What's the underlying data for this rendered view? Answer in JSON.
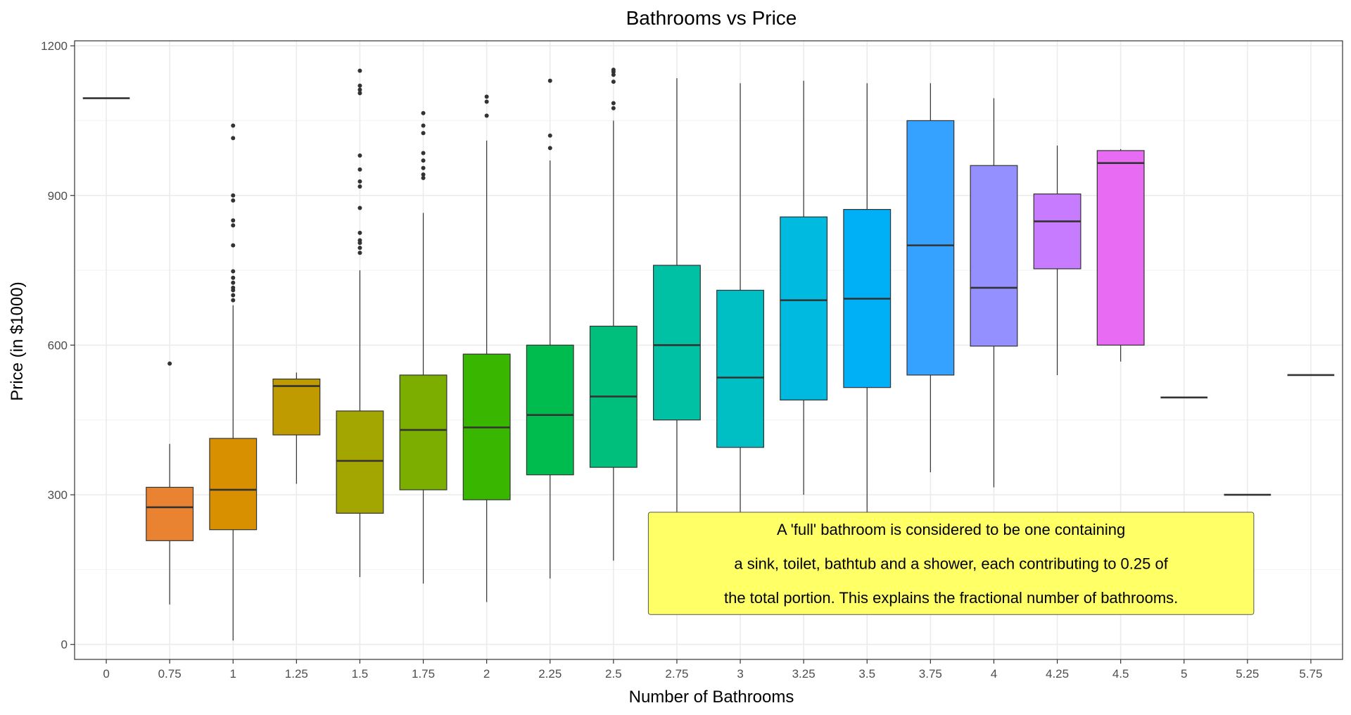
{
  "chart_data": {
    "type": "boxplot",
    "title": "Bathrooms vs Price",
    "xlabel": "Number of Bathrooms",
    "ylabel": "Price (in $1000)",
    "ylim": [
      -30,
      1210
    ],
    "yticks": [
      0,
      300,
      600,
      900,
      1200
    ],
    "grid": true,
    "legend": "none",
    "categories": [
      "0",
      "0.75",
      "1",
      "1.25",
      "1.5",
      "1.75",
      "2",
      "2.25",
      "2.5",
      "2.75",
      "3",
      "3.25",
      "3.5",
      "3.75",
      "4",
      "4.25",
      "4.5",
      "5",
      "5.25",
      "5.75"
    ],
    "boxes": [
      {
        "x": "0",
        "color": "#F8766D",
        "q1": 1095,
        "median": 1095,
        "q3": 1095,
        "whisker_low": 1095,
        "whisker_high": 1095,
        "outliers": []
      },
      {
        "x": "0.75",
        "color": "#EA8331",
        "q1": 208,
        "median": 275,
        "q3": 315,
        "whisker_low": 80,
        "whisker_high": 402,
        "outliers": [
          563
        ]
      },
      {
        "x": "1",
        "color": "#D89000",
        "q1": 230,
        "median": 310,
        "q3": 413,
        "whisker_low": 8,
        "whisker_high": 680,
        "outliers": [
          690,
          700,
          710,
          715,
          725,
          735,
          748,
          800,
          840,
          850,
          890,
          900,
          1015,
          1040
        ]
      },
      {
        "x": "1.25",
        "color": "#C09B00",
        "q1": 420,
        "median": 518,
        "q3": 532,
        "whisker_low": 322,
        "whisker_high": 545,
        "outliers": []
      },
      {
        "x": "1.5",
        "color": "#A3A500",
        "q1": 263,
        "median": 368,
        "q3": 468,
        "whisker_low": 135,
        "whisker_high": 750,
        "outliers": [
          785,
          795,
          805,
          810,
          825,
          875,
          918,
          928,
          952,
          980,
          1105,
          1112,
          1120,
          1150
        ]
      },
      {
        "x": "1.75",
        "color": "#7CAE00",
        "q1": 310,
        "median": 430,
        "q3": 540,
        "whisker_low": 122,
        "whisker_high": 865,
        "outliers": [
          935,
          942,
          955,
          970,
          985,
          1025,
          1040,
          1065
        ]
      },
      {
        "x": "2",
        "color": "#39B600",
        "q1": 290,
        "median": 435,
        "q3": 582,
        "whisker_low": 85,
        "whisker_high": 1010,
        "outliers": [
          1060,
          1088,
          1098
        ]
      },
      {
        "x": "2.25",
        "color": "#00BB4E",
        "q1": 340,
        "median": 460,
        "q3": 600,
        "whisker_low": 132,
        "whisker_high": 970,
        "outliers": [
          995,
          1020,
          1130
        ]
      },
      {
        "x": "2.5",
        "color": "#00BF7D",
        "q1": 355,
        "median": 497,
        "q3": 638,
        "whisker_low": 168,
        "whisker_high": 1050,
        "outliers": [
          1075,
          1085,
          1128,
          1142,
          1148,
          1152
        ]
      },
      {
        "x": "2.75",
        "color": "#00C1A3",
        "q1": 450,
        "median": 600,
        "q3": 760,
        "whisker_low": 217,
        "whisker_high": 1135,
        "outliers": []
      },
      {
        "x": "3",
        "color": "#00BFC4",
        "q1": 395,
        "median": 535,
        "q3": 710,
        "whisker_low": 237,
        "whisker_high": 1125,
        "outliers": []
      },
      {
        "x": "3.25",
        "color": "#00BAE0",
        "q1": 490,
        "median": 690,
        "q3": 857,
        "whisker_low": 300,
        "whisker_high": 1130,
        "outliers": []
      },
      {
        "x": "3.5",
        "color": "#00B0F6",
        "q1": 515,
        "median": 693,
        "q3": 872,
        "whisker_low": 250,
        "whisker_high": 1125,
        "outliers": []
      },
      {
        "x": "3.75",
        "color": "#35A2FF",
        "q1": 540,
        "median": 800,
        "q3": 1050,
        "whisker_low": 345,
        "whisker_high": 1125,
        "outliers": []
      },
      {
        "x": "4",
        "color": "#9590FF",
        "q1": 598,
        "median": 715,
        "q3": 960,
        "whisker_low": 315,
        "whisker_high": 1095,
        "outliers": []
      },
      {
        "x": "4.25",
        "color": "#C77CFF",
        "q1": 753,
        "median": 848,
        "q3": 903,
        "whisker_low": 540,
        "whisker_high": 1000,
        "outliers": []
      },
      {
        "x": "4.5",
        "color": "#E76BF3",
        "q1": 600,
        "median": 965,
        "q3": 990,
        "whisker_low": 567,
        "whisker_high": 993,
        "outliers": []
      },
      {
        "x": "5",
        "color": "#FA62DB",
        "q1": 495,
        "median": 495,
        "q3": 495,
        "whisker_low": 495,
        "whisker_high": 495,
        "outliers": []
      },
      {
        "x": "5.25",
        "color": "#FF62BC",
        "q1": 300,
        "median": 300,
        "q3": 300,
        "whisker_low": 300,
        "whisker_high": 300,
        "outliers": []
      },
      {
        "x": "5.75",
        "color": "#FF6C91",
        "q1": 540,
        "median": 540,
        "q3": 540,
        "whisker_low": 540,
        "whisker_high": 540,
        "outliers": []
      }
    ],
    "annotation": {
      "lines": [
        "A 'full' bathroom is considered to be one containing",
        "a sink, toilet, bathtub and a shower, each contributing to 0.25 of",
        "the total portion. This explains the fractional number of bathrooms."
      ],
      "x_from": "2.75",
      "x_to": "5.25",
      "y_top": 265,
      "y_bottom": 60,
      "fill": "#FFFF66"
    }
  }
}
